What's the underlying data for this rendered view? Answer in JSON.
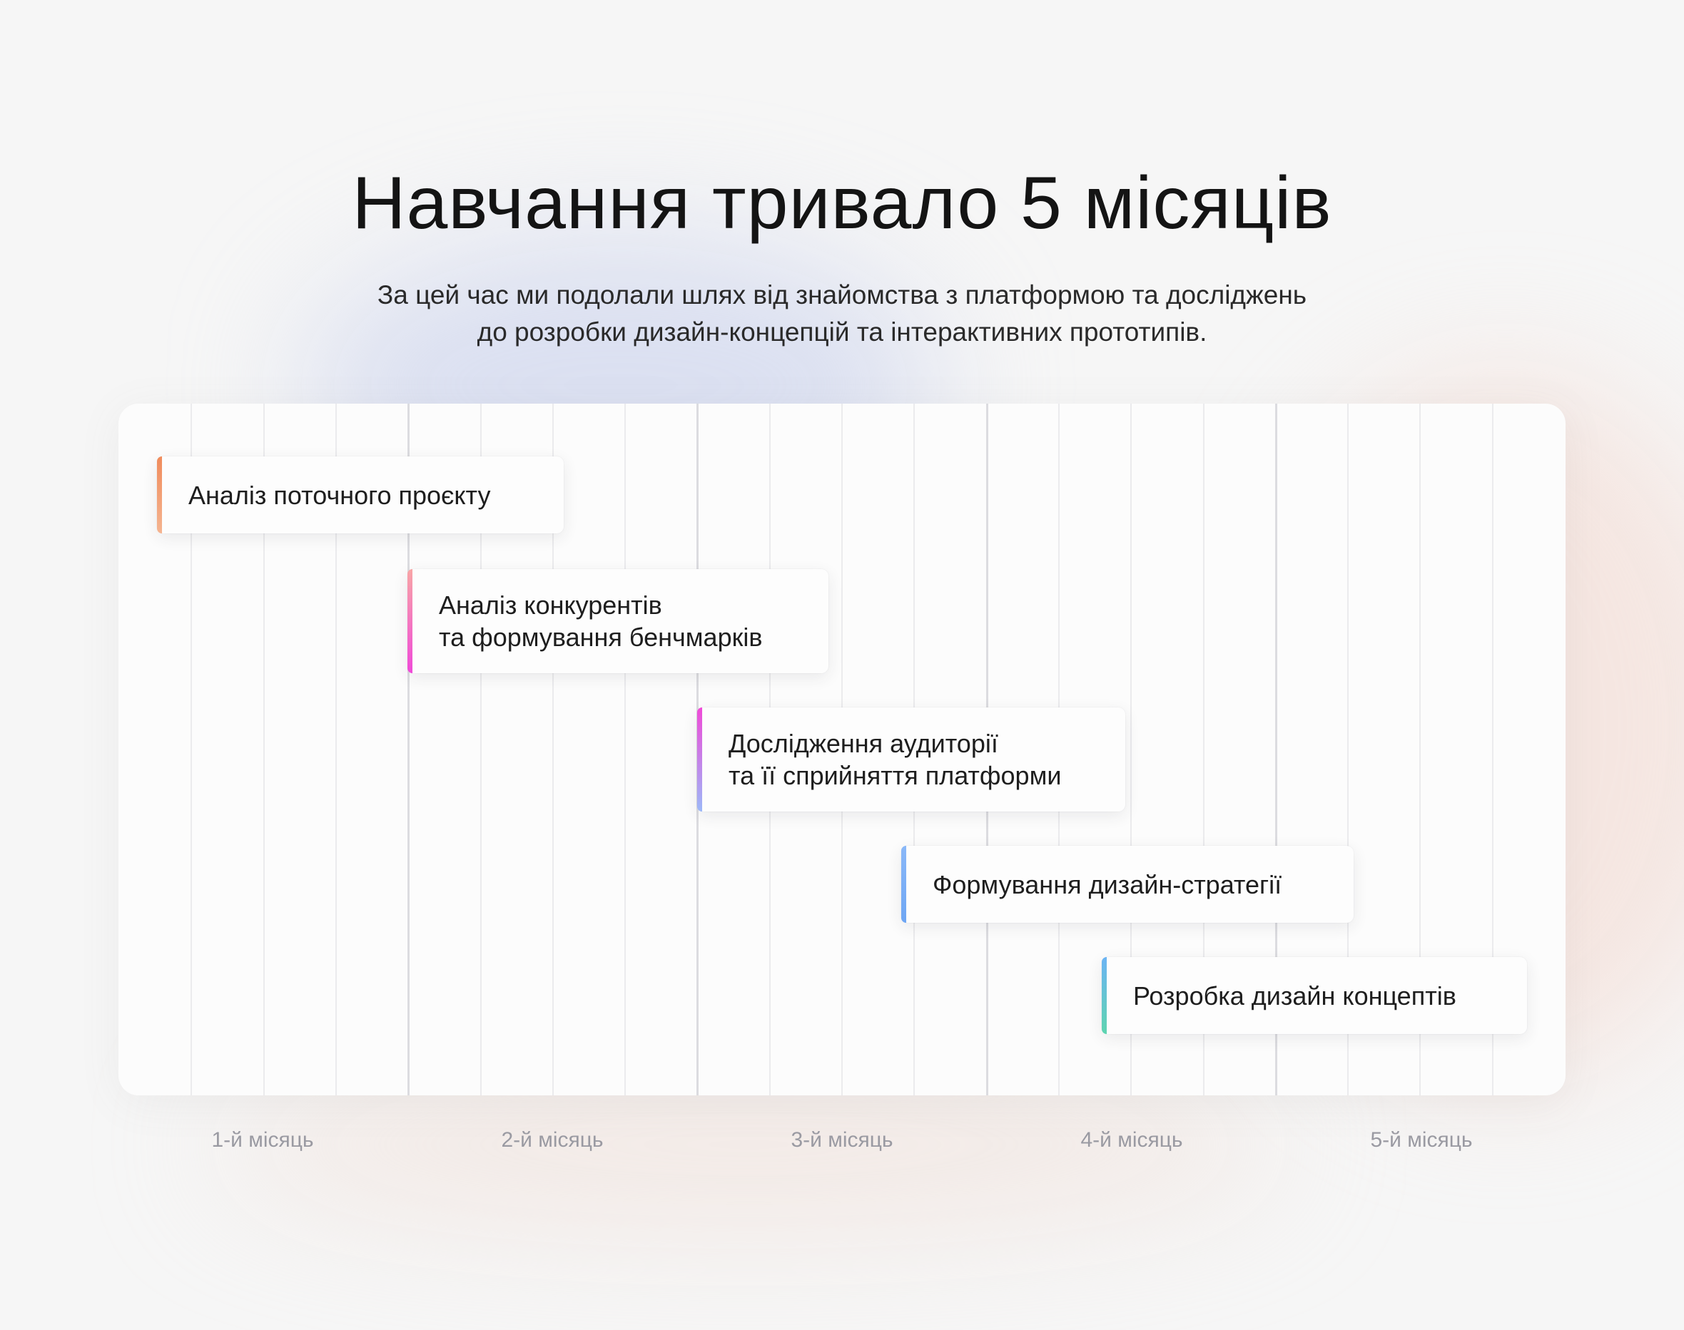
{
  "title": "Навчання тривало 5 місяців",
  "subtitle": {
    "line1": "За цей час ми подолали шлях від знайомства з платформою та досліджень",
    "line2": "до розробки дизайн-концепцій та інтерактивних прототипів."
  },
  "tasks": [
    {
      "line1": "Аналіз поточного проєкту",
      "line2": "",
      "accent": [
        "#f08c5c",
        "#f5b490"
      ]
    },
    {
      "line1": "Аналіз конкурентів",
      "line2": "та формування бенчмарків",
      "accent": [
        "#f8a6a6",
        "#f04ad8"
      ]
    },
    {
      "line1": "Дослідження аудиторії",
      "line2": "та її сприйняття платформи",
      "accent": [
        "#f04ad8",
        "#9cb8f8"
      ]
    },
    {
      "line1": "Формування дизайн-стратегії",
      "line2": "",
      "accent": [
        "#8ab8f8",
        "#6ea6f4"
      ]
    },
    {
      "line1": "Розробка дизайн концептів",
      "line2": "",
      "accent": [
        "#6cb4f4",
        "#5ed4b0"
      ]
    }
  ],
  "months": [
    "1-й місяць",
    "2-й місяць",
    "3-й місяць",
    "4-й місяць",
    "5-й місяць"
  ]
}
